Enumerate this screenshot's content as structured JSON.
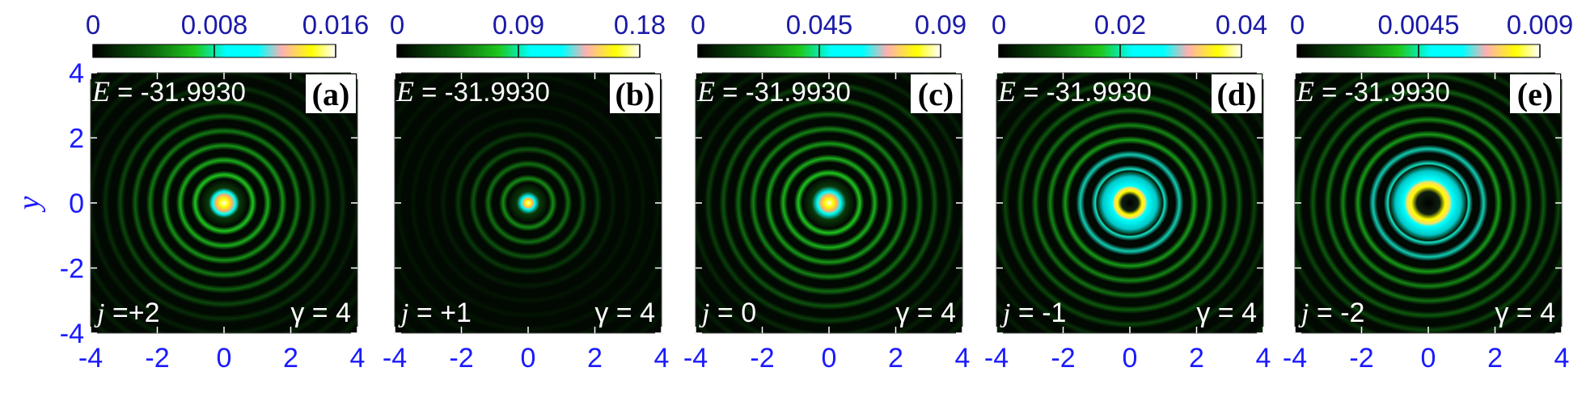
{
  "chart_data": {
    "type": "heatmap",
    "y_axis_label": "y",
    "x_ticks": [
      "-4",
      "-2",
      "0",
      "2",
      "4"
    ],
    "y_ticks": [
      "4",
      "2",
      "0",
      "-2",
      "-4"
    ],
    "xlim": [
      -4,
      4
    ],
    "ylim": [
      -4,
      4
    ],
    "colormap": [
      "#000000",
      "#0a5a0a",
      "#1ec81e",
      "#00ffff",
      "#ffb0b0",
      "#ffff00",
      "#ffffff"
    ],
    "panels": [
      {
        "tag": "(a)",
        "energy_prefix": "E",
        "energy_value": " = -31.9930",
        "j_prefix": "j",
        "j_value": " =+2",
        "gamma_text": "γ = 4",
        "colorbar_ticks": [
          "0",
          "0.008",
          "0.016"
        ],
        "colorbar_range": [
          0,
          0.016
        ]
      },
      {
        "tag": "(b)",
        "energy_prefix": "E",
        "energy_value": " = -31.9930",
        "j_prefix": "j",
        "j_value": " = +1",
        "gamma_text": "γ = 4",
        "colorbar_ticks": [
          "0",
          "0.09",
          "0.18"
        ],
        "colorbar_range": [
          0,
          0.18
        ]
      },
      {
        "tag": "(c)",
        "energy_prefix": "E",
        "energy_value": " = -31.9930",
        "j_prefix": "j",
        "j_value": " = 0",
        "gamma_text": "γ = 4",
        "colorbar_ticks": [
          "0",
          "0.045",
          "0.09"
        ],
        "colorbar_range": [
          0,
          0.09
        ]
      },
      {
        "tag": "(d)",
        "energy_prefix": "E",
        "energy_value": " = -31.9930",
        "j_prefix": "j",
        "j_value": " = -1",
        "gamma_text": "γ = 4",
        "colorbar_ticks": [
          "0",
          "0.02",
          "0.04"
        ],
        "colorbar_range": [
          0,
          0.04
        ]
      },
      {
        "tag": "(e)",
        "energy_prefix": "E",
        "energy_value": " = -31.9930",
        "j_prefix": "j",
        "j_value": " = -2",
        "gamma_text": "γ = 4",
        "colorbar_ticks": [
          "0",
          "0.0045",
          "0.009"
        ],
        "colorbar_range": [
          0,
          0.009
        ]
      }
    ]
  }
}
